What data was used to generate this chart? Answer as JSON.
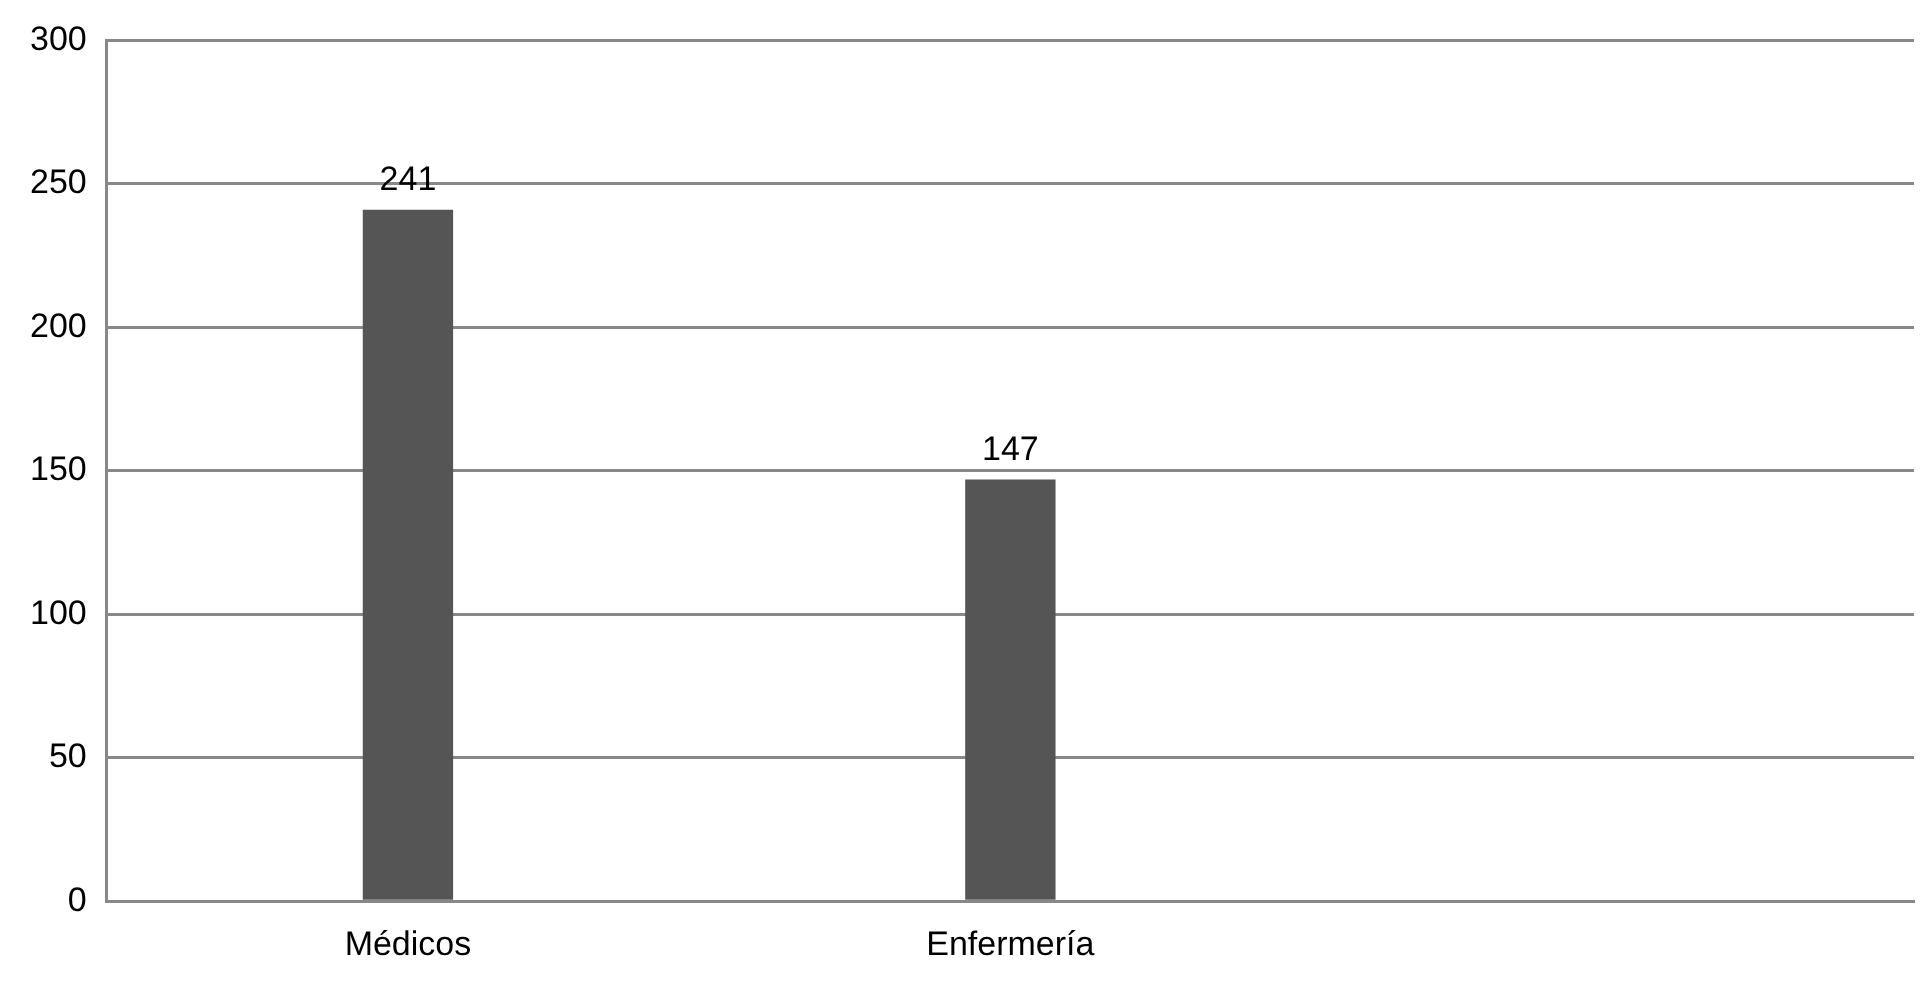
{
  "chart_data": {
    "type": "bar",
    "categories": [
      "Médicos",
      "Enfermería",
      null
    ],
    "values": [
      241,
      147,
      null
    ],
    "color": "#555555",
    "ylim": [
      0,
      300
    ],
    "yticks": [
      0,
      50,
      100,
      150,
      200,
      250,
      300
    ],
    "grid": "y",
    "data_labels": true
  }
}
